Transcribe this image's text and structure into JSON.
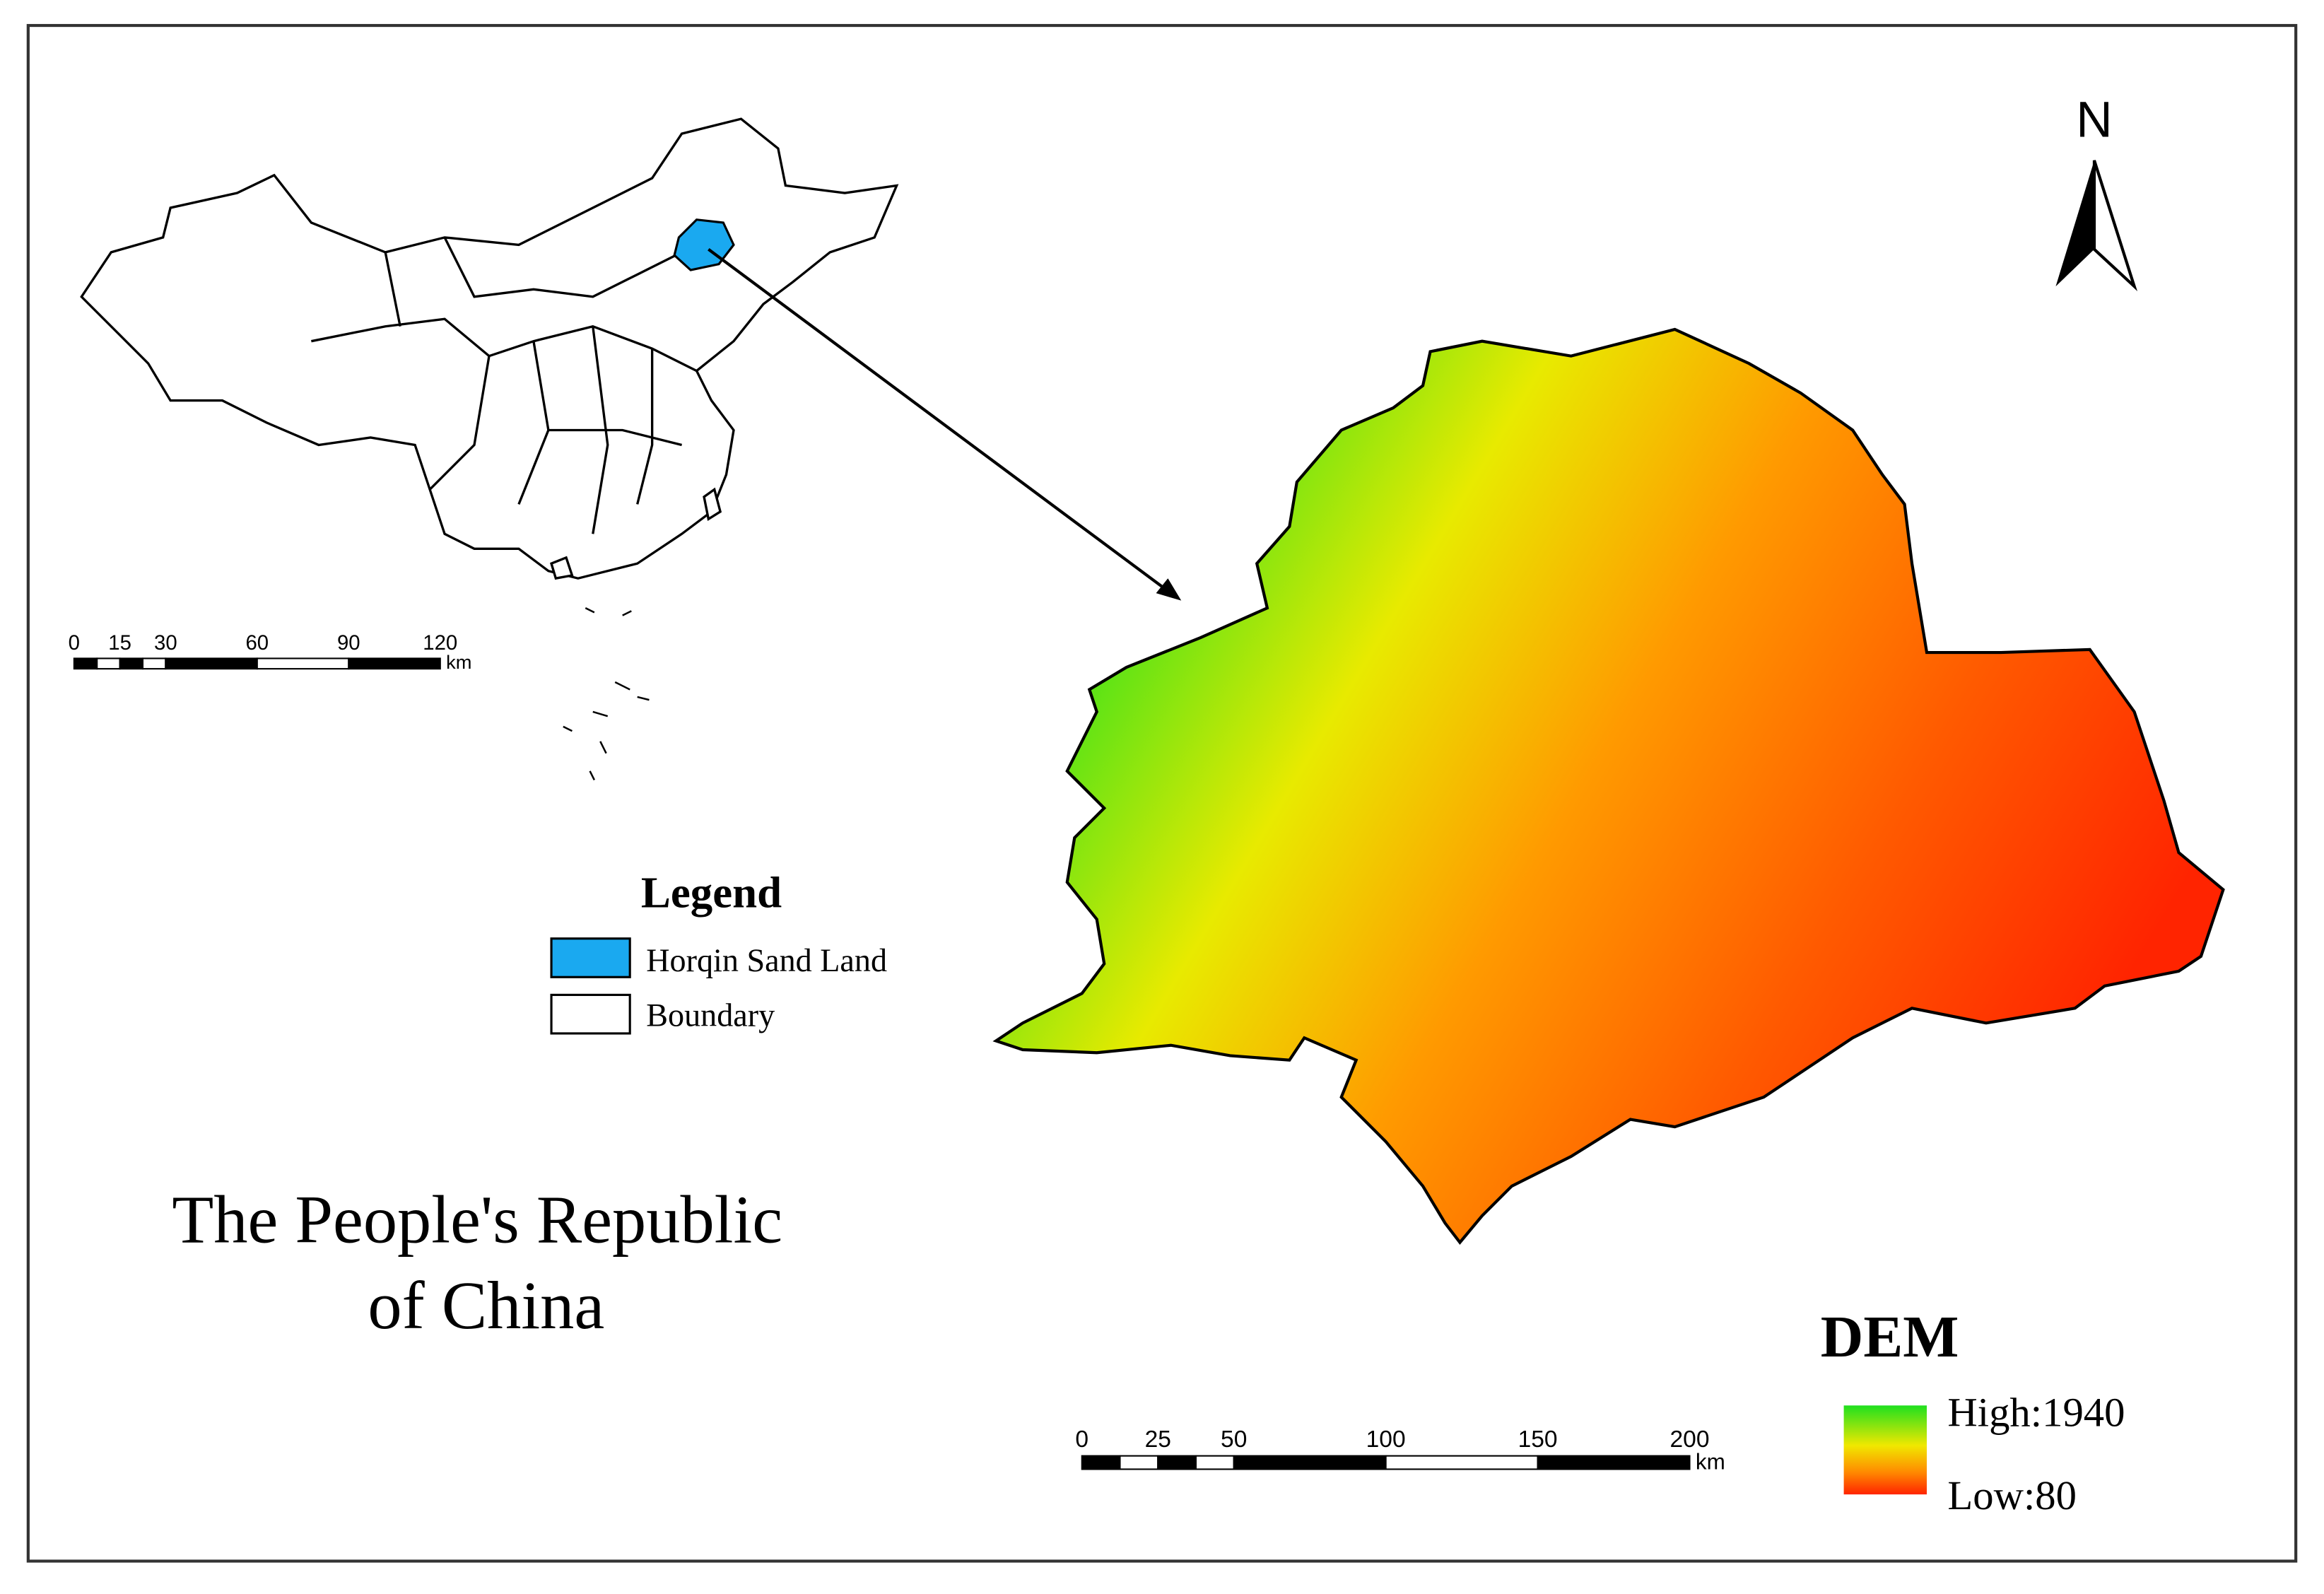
{
  "north_arrow": "N",
  "legend": {
    "title": "Legend",
    "items": [
      {
        "label": "Horqin Sand Land",
        "color": "#1aa9f0"
      },
      {
        "label": "Boundary",
        "color": "#ffffff"
      }
    ]
  },
  "title": [
    "The People's Republic",
    "of China"
  ],
  "dem_legend": {
    "title": "DEM",
    "high": "High:1940",
    "low": "Low:80"
  },
  "scale_bars": [
    {
      "ticks": [
        0,
        15,
        30,
        60,
        90,
        120
      ],
      "unit": "km"
    },
    {
      "ticks": [
        0,
        25,
        50,
        100,
        150,
        200
      ],
      "unit": "km"
    }
  ]
}
